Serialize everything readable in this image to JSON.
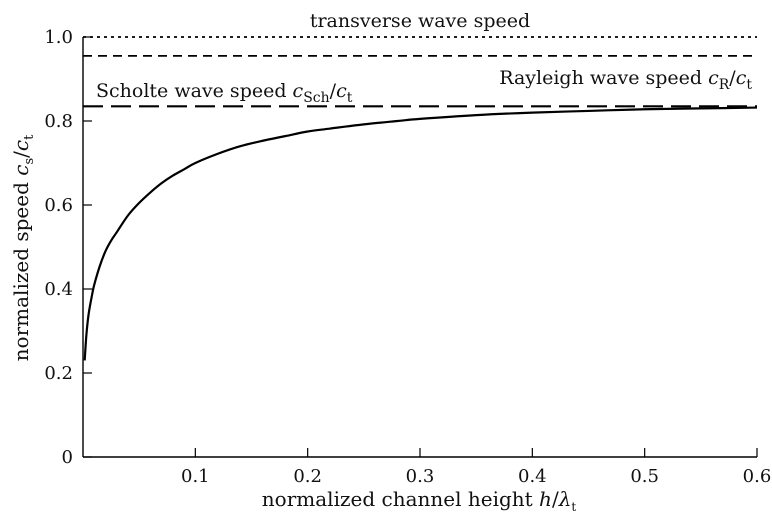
{
  "chart_data": {
    "type": "line",
    "title": "",
    "xlabel": {
      "text": "normalized channel height ",
      "var": "h",
      "slash": "/",
      "lambda": "λ",
      "sub": "t"
    },
    "ylabel": {
      "text": "normalized speed ",
      "var1": "c",
      "sub1": "s",
      "slash": "/",
      "var2": "c",
      "sub2": "t"
    },
    "xlim": [
      0,
      0.6
    ],
    "ylim": [
      0,
      1.0
    ],
    "xticks": [
      0.1,
      0.2,
      0.3,
      0.4,
      0.5,
      0.6
    ],
    "xtick_labels": [
      "0.1",
      "0.2",
      "0.3",
      "0.4",
      "0.5",
      "0.6"
    ],
    "yticks": [
      0,
      0.2,
      0.4,
      0.6,
      0.8,
      1.0
    ],
    "ytick_labels": [
      "0",
      "0.2",
      "0.4",
      "0.6",
      "0.8",
      "1.0"
    ],
    "grid": false,
    "series": [
      {
        "x": [
          0.0015,
          0.003,
          0.005,
          0.008,
          0.01,
          0.015,
          0.02,
          0.025,
          0.03,
          0.04,
          0.05,
          0.06,
          0.07,
          0.08,
          0.09,
          0.1,
          0.12,
          0.14,
          0.16,
          0.18,
          0.2,
          0.22,
          0.25,
          0.28,
          0.3,
          0.35,
          0.4,
          0.45,
          0.5,
          0.55,
          0.6
        ],
        "y": [
          0.23,
          0.29,
          0.34,
          0.385,
          0.41,
          0.455,
          0.49,
          0.515,
          0.535,
          0.575,
          0.605,
          0.63,
          0.652,
          0.67,
          0.685,
          0.7,
          0.722,
          0.74,
          0.753,
          0.764,
          0.775,
          0.782,
          0.792,
          0.8,
          0.805,
          0.814,
          0.82,
          0.824,
          0.828,
          0.83,
          0.832
        ],
        "color": "#000000",
        "style": "solid"
      }
    ],
    "reference_lines": [
      {
        "y": 1.0,
        "style": "dotted",
        "color": "#000000",
        "label": {
          "text": "transverse wave speed"
        }
      },
      {
        "y": 0.955,
        "style": "dashed-short",
        "color": "#000000",
        "label": {
          "text": "Rayleigh wave speed ",
          "var": "c",
          "sub": "R",
          "slash": "/",
          "var2": "c",
          "sub2": "t"
        }
      },
      {
        "y": 0.835,
        "style": "dashed-long",
        "color": "#000000",
        "label": {
          "text": "Scholte wave speed ",
          "var": "c",
          "sub": "Sch",
          "slash": "/",
          "var2": "c",
          "sub2": "t"
        }
      }
    ]
  }
}
